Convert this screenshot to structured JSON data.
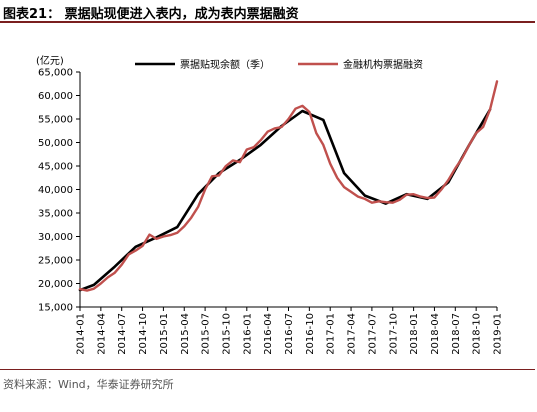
{
  "header": {
    "title": "图表21：  票据贴现便进入表内，成为表内票据融资"
  },
  "footer": {
    "source": "资料来源：Wind，华泰证券研究所"
  },
  "chart_data": {
    "type": "line",
    "ylabel": "(亿元)",
    "ylim": [
      15000,
      65000
    ],
    "yticks": [
      15000,
      20000,
      25000,
      30000,
      35000,
      40000,
      45000,
      50000,
      55000,
      60000,
      65000
    ],
    "ytick_labels": [
      "15,000",
      "20,000",
      "25,000",
      "30,000",
      "35,000",
      "40,000",
      "45,000",
      "50,000",
      "55,000",
      "60,000",
      "65,000"
    ],
    "xtick_labels": [
      "2014-01",
      "2014-04",
      "2014-07",
      "2014-10",
      "2015-01",
      "2015-04",
      "2015-07",
      "2015-10",
      "2016-01",
      "2016-04",
      "2016-07",
      "2016-10",
      "2017-01",
      "2017-04",
      "2017-07",
      "2017-10",
      "2018-01",
      "2018-04",
      "2018-07",
      "2018-10",
      "2019-01"
    ],
    "legend_position": "top",
    "series": [
      {
        "name": "票据贴现余额（季）",
        "color": "#000000",
        "x": [
          "2014-01",
          "2014-03",
          "2014-06",
          "2014-09",
          "2014-12",
          "2015-03",
          "2015-06",
          "2015-09",
          "2015-12",
          "2016-03",
          "2016-06",
          "2016-09",
          "2016-12",
          "2017-03",
          "2017-06",
          "2017-09",
          "2017-12",
          "2018-03",
          "2018-06",
          "2018-09",
          "2018-12"
        ],
        "values": [
          18600,
          19700,
          23600,
          27800,
          29800,
          32000,
          39000,
          43500,
          46300,
          49500,
          53500,
          56700,
          54800,
          43500,
          38700,
          37000,
          39000,
          38000,
          41500,
          49500,
          57000
        ]
      },
      {
        "name": "金融机构票据融资",
        "color": "#c0504d",
        "x": [
          "2014-01",
          "2014-02",
          "2014-03",
          "2014-04",
          "2014-05",
          "2014-06",
          "2014-07",
          "2014-08",
          "2014-09",
          "2014-10",
          "2014-11",
          "2014-12",
          "2015-01",
          "2015-02",
          "2015-03",
          "2015-04",
          "2015-05",
          "2015-06",
          "2015-07",
          "2015-08",
          "2015-09",
          "2015-10",
          "2015-11",
          "2015-12",
          "2016-01",
          "2016-02",
          "2016-03",
          "2016-04",
          "2016-05",
          "2016-06",
          "2016-07",
          "2016-08",
          "2016-09",
          "2016-10",
          "2016-11",
          "2016-12",
          "2017-01",
          "2017-02",
          "2017-03",
          "2017-04",
          "2017-05",
          "2017-06",
          "2017-07",
          "2017-08",
          "2017-09",
          "2017-10",
          "2017-11",
          "2017-12",
          "2018-01",
          "2018-02",
          "2018-03",
          "2018-04",
          "2018-05",
          "2018-06",
          "2018-07",
          "2018-08",
          "2018-09",
          "2018-10",
          "2018-11",
          "2018-12",
          "2019-01"
        ],
        "values": [
          18800,
          18500,
          18900,
          20000,
          21300,
          22300,
          24000,
          26200,
          27000,
          28000,
          30400,
          29500,
          30000,
          30300,
          30800,
          32200,
          34000,
          36300,
          40000,
          42800,
          43000,
          45000,
          46200,
          45800,
          48500,
          49000,
          50500,
          52300,
          53000,
          53300,
          55000,
          57200,
          57800,
          56500,
          52000,
          49500,
          45500,
          42500,
          40500,
          39500,
          38500,
          38000,
          37200,
          37500,
          37300,
          37200,
          37800,
          38900,
          39000,
          38500,
          38200,
          38300,
          40000,
          42000,
          44500,
          46700,
          49500,
          52000,
          53300,
          57000,
          63000
        ]
      }
    ]
  }
}
